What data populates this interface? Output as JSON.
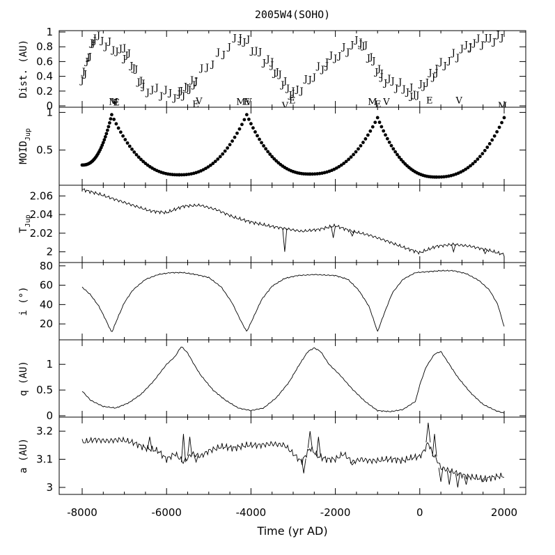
{
  "chart_data": {
    "type": "line",
    "title": "2005W4(SOHO)",
    "xlabel": "Time (yr AD)",
    "xlim": [
      -8000,
      2000
    ],
    "x_ticks": [
      -8000,
      -6000,
      -4000,
      -2000,
      0,
      2000
    ],
    "panels": [
      {
        "id": "dist",
        "ylabel": "Dist. (AU)",
        "type": "scatter",
        "ylim": [
          0,
          1
        ],
        "y_ticks": [
          0,
          0.2,
          0.4,
          0.6,
          0.8,
          1
        ],
        "j_marker": "J",
        "j_groups": [
          {
            "x": [
              -8000,
              -7700
            ],
            "y": [
              0.35,
              0.95
            ]
          },
          {
            "x": [
              -7700,
              -7000
            ],
            "y": [
              0.95,
              0.7
            ]
          },
          {
            "x": [
              -7000,
              -6550
            ],
            "y": [
              0.8,
              0.25
            ]
          },
          {
            "x": [
              -6550,
              -5700
            ],
            "y": [
              0.25,
              0.15
            ]
          },
          {
            "x": [
              -5700,
              -5300
            ],
            "y": [
              0.15,
              0.35
            ]
          },
          {
            "x": [
              -5300,
              -4250
            ],
            "y": [
              0.4,
              0.95
            ]
          },
          {
            "x": [
              -4250,
              -3500
            ],
            "y": [
              0.95,
              0.55
            ]
          },
          {
            "x": [
              -3500,
              -3000
            ],
            "y": [
              0.55,
              0.15
            ]
          },
          {
            "x": [
              -3000,
              -2200
            ],
            "y": [
              0.15,
              0.6
            ]
          },
          {
            "x": [
              -2200,
              -1400
            ],
            "y": [
              0.6,
              0.9
            ]
          },
          {
            "x": [
              -1400,
              -900
            ],
            "y": [
              0.9,
              0.4
            ]
          },
          {
            "x": [
              -900,
              -200
            ],
            "y": [
              0.4,
              0.2
            ]
          },
          {
            "x": [
              -200,
              400
            ],
            "y": [
              0.1,
              0.5
            ]
          },
          {
            "x": [
              400,
              1200
            ],
            "y": [
              0.5,
              0.85
            ]
          },
          {
            "x": [
              1200,
              1950
            ],
            "y": [
              0.85,
              0.95
            ]
          }
        ],
        "other_markers": [
          {
            "label": "M",
            "x": -7260,
            "y": 0.06
          },
          {
            "label": "V",
            "x": -7230,
            "y": 0.06
          },
          {
            "label": "E",
            "x": -7190,
            "y": 0.05
          },
          {
            "label": "E",
            "x": -5310,
            "y": 0.03
          },
          {
            "label": "V",
            "x": -5230,
            "y": 0.07
          },
          {
            "label": "M",
            "x": -4240,
            "y": 0.06
          },
          {
            "label": "E",
            "x": -4100,
            "y": 0.06
          },
          {
            "label": "V",
            "x": -4060,
            "y": 0.06
          },
          {
            "label": "E",
            "x": -3020,
            "y": 0.08
          },
          {
            "label": "V",
            "x": -3190,
            "y": 0.01
          },
          {
            "label": "M",
            "x": -1120,
            "y": 0.06
          },
          {
            "label": "E",
            "x": -990,
            "y": 0.03
          },
          {
            "label": "V",
            "x": -790,
            "y": 0.06
          },
          {
            "label": "E",
            "x": 230,
            "y": 0.08
          },
          {
            "label": "V",
            "x": 930,
            "y": 0.08
          },
          {
            "label": "M",
            "x": 1960,
            "y": 0.01
          }
        ]
      },
      {
        "id": "moid",
        "ylabel": "MOID",
        "ylabel_sub": "Jup",
        "type": "scatter",
        "ylim": [
          0.05,
          1.05
        ],
        "y_ticks": [
          0.5,
          1
        ],
        "segments": [
          {
            "x_start": -8000,
            "x_peak": -7300,
            "x_min": -5700,
            "y_start": 0.3,
            "y_peak": 0.97,
            "y_min": 0.17
          },
          {
            "x_start": -5700,
            "x_peak": -4100,
            "x_min": -2600,
            "y_start": 0.17,
            "y_peak": 0.97,
            "y_min": 0.18
          },
          {
            "x_start": -2600,
            "x_peak": -1000,
            "x_min": 400,
            "y_start": 0.18,
            "y_peak": 0.93,
            "y_min": 0.14
          },
          {
            "x_start": 400,
            "x_peak": 2000,
            "x_min": 2000,
            "y_start": 0.14,
            "y_peak": 0.93,
            "y_min": 0.93
          }
        ]
      },
      {
        "id": "tjup",
        "ylabel": "T",
        "ylabel_sub": "Jup",
        "type": "line",
        "ylim": [
          1.99,
          2.07
        ],
        "y_ticks": [
          2,
          2.02,
          2.04,
          2.06
        ],
        "x": [
          -8000,
          -7600,
          -7200,
          -6800,
          -6400,
          -6000,
          -5600,
          -5200,
          -4800,
          -4400,
          -4000,
          -3600,
          -3200,
          -2800,
          -2400,
          -2000,
          -1600,
          -1200,
          -800,
          -400,
          0,
          400,
          800,
          1200,
          1600,
          2000
        ],
        "y": [
          2.067,
          2.062,
          2.056,
          2.05,
          2.044,
          2.042,
          2.049,
          2.05,
          2.045,
          2.037,
          2.032,
          2.028,
          2.025,
          2.022,
          2.024,
          2.028,
          2.022,
          2.018,
          2.012,
          2.005,
          1.999,
          2.006,
          2.008,
          2.006,
          2.002,
          1.997
        ],
        "dips": [
          [
            -3200,
            2.0
          ],
          [
            -2050,
            2.015
          ],
          [
            -1600,
            2.017
          ],
          [
            800,
            2.0
          ],
          [
            1550,
            1.998
          ]
        ]
      },
      {
        "id": "incl",
        "ylabel": "i (°)",
        "type": "line",
        "ylim": [
          5,
          82
        ],
        "y_ticks": [
          20,
          40,
          60,
          80
        ],
        "x": [
          -8000,
          -7800,
          -7600,
          -7450,
          -7300,
          -7150,
          -7000,
          -6800,
          -6500,
          -6200,
          -5900,
          -5600,
          -5300,
          -5000,
          -4700,
          -4450,
          -4250,
          -4100,
          -3950,
          -3750,
          -3500,
          -3200,
          -2900,
          -2500,
          -2000,
          -1700,
          -1450,
          -1200,
          -1000,
          -850,
          -650,
          -400,
          -100,
          200,
          500,
          800,
          1100,
          1400,
          1650,
          1850,
          2000
        ],
        "y": [
          58,
          50,
          38,
          25,
          11,
          27,
          42,
          55,
          66,
          71,
          73,
          73,
          71,
          68,
          58,
          42,
          24,
          12,
          26,
          45,
          59,
          67,
          70,
          71,
          70,
          66,
          55,
          38,
          12,
          30,
          52,
          66,
          73,
          74,
          75,
          75,
          72,
          65,
          55,
          40,
          17
        ]
      },
      {
        "id": "q",
        "ylabel": "q (AU)",
        "type": "line",
        "ylim": [
          0,
          1.45
        ],
        "y_ticks": [
          0,
          0.5,
          1
        ],
        "x": [
          -8000,
          -7800,
          -7500,
          -7200,
          -6900,
          -6600,
          -6300,
          -6000,
          -5800,
          -5650,
          -5500,
          -5350,
          -5200,
          -4900,
          -4600,
          -4300,
          -4000,
          -3700,
          -3400,
          -3100,
          -2850,
          -2650,
          -2500,
          -2350,
          -2150,
          -1900,
          -1600,
          -1300,
          -1000,
          -700,
          -400,
          -100,
          0,
          150,
          350,
          500,
          700,
          900,
          1200,
          1500,
          1800,
          2000
        ],
        "y": [
          0.48,
          0.3,
          0.18,
          0.15,
          0.25,
          0.42,
          0.68,
          1.0,
          1.15,
          1.35,
          1.22,
          1.0,
          0.8,
          0.5,
          0.3,
          0.15,
          0.1,
          0.15,
          0.35,
          0.65,
          1.0,
          1.25,
          1.32,
          1.25,
          1.0,
          0.8,
          0.52,
          0.28,
          0.1,
          0.08,
          0.12,
          0.28,
          0.6,
          0.95,
          1.2,
          1.25,
          1.0,
          0.75,
          0.45,
          0.22,
          0.1,
          0.05
        ]
      },
      {
        "id": "a",
        "ylabel": "a (AU)",
        "type": "line",
        "ylim": [
          2.98,
          3.245
        ],
        "y_ticks": [
          3,
          3.1,
          3.2
        ],
        "x": [
          -8000,
          -7700,
          -7400,
          -7100,
          -6800,
          -6500,
          -6200,
          -6000,
          -5800,
          -5600,
          -5400,
          -5200,
          -5000,
          -4700,
          -4400,
          -4100,
          -3800,
          -3500,
          -3200,
          -3000,
          -2800,
          -2600,
          -2400,
          -2200,
          -2000,
          -1800,
          -1600,
          -1400,
          -1200,
          -1000,
          -800,
          -600,
          -400,
          -200,
          0,
          100,
          200,
          300,
          400,
          500,
          700,
          900,
          1100,
          1300,
          1500,
          1700,
          1900,
          2000
        ],
        "y": [
          3.16,
          3.17,
          3.165,
          3.17,
          3.16,
          3.14,
          3.13,
          3.1,
          3.12,
          3.09,
          3.12,
          3.11,
          3.13,
          3.145,
          3.14,
          3.15,
          3.15,
          3.155,
          3.15,
          3.12,
          3.09,
          3.14,
          3.11,
          3.1,
          3.1,
          3.12,
          3.09,
          3.1,
          3.095,
          3.095,
          3.1,
          3.1,
          3.095,
          3.105,
          3.11,
          3.13,
          3.16,
          3.12,
          3.1,
          3.07,
          3.06,
          3.05,
          3.04,
          3.035,
          3.03,
          3.035,
          3.04,
          3.04
        ],
        "spikes": [
          [
            -6400,
            3.18
          ],
          [
            -5600,
            3.19
          ],
          [
            -5450,
            3.18
          ],
          [
            -5300,
            3.09
          ],
          [
            -2750,
            3.05
          ],
          [
            -2600,
            3.2
          ],
          [
            -2400,
            3.18
          ],
          [
            -1600,
            3.08
          ],
          [
            200,
            3.23
          ],
          [
            350,
            3.19
          ],
          [
            500,
            3.02
          ],
          [
            700,
            3.01
          ],
          [
            900,
            3.0
          ],
          [
            1100,
            3.01
          ],
          [
            1500,
            3.02
          ]
        ]
      }
    ]
  }
}
